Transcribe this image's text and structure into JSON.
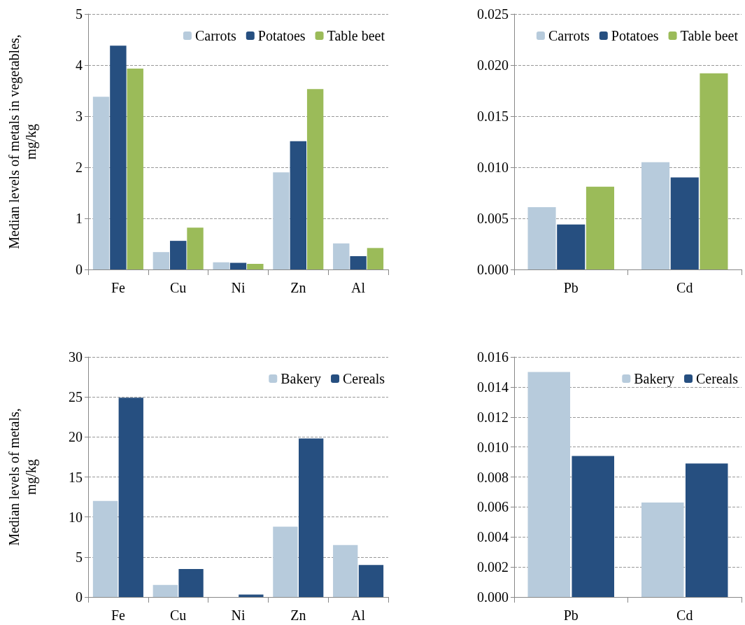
{
  "chart_data": [
    {
      "type": "bar",
      "ylabel": "Median levels of metals in vegetables,\nmg/kg",
      "categories": [
        "Fe",
        "Cu",
        "Ni",
        "Zn",
        "Al"
      ],
      "series": [
        {
          "name": "Carrots",
          "color": "#b7cbdc",
          "values": [
            3.38,
            0.34,
            0.14,
            1.9,
            0.51
          ]
        },
        {
          "name": "Potatoes",
          "color": "#264f80",
          "values": [
            4.38,
            0.56,
            0.13,
            2.51,
            0.26
          ]
        },
        {
          "name": "Table beet",
          "color": "#9bbb59",
          "values": [
            3.93,
            0.82,
            0.11,
            3.53,
            0.42
          ]
        }
      ],
      "ylim": [
        0,
        5
      ],
      "yticks": [
        0,
        1,
        2,
        3,
        4,
        5
      ],
      "grid": "y",
      "legend": "top right"
    },
    {
      "type": "bar",
      "categories": [
        "Pb",
        "Cd"
      ],
      "series": [
        {
          "name": "Carrots",
          "color": "#b7cbdc",
          "values": [
            0.0061,
            0.0105
          ]
        },
        {
          "name": "Potatoes",
          "color": "#264f80",
          "values": [
            0.0044,
            0.009
          ]
        },
        {
          "name": "Table beet",
          "color": "#9bbb59",
          "values": [
            0.0081,
            0.0192
          ]
        }
      ],
      "ylim": [
        0,
        0.025
      ],
      "yticks": [
        {
          "value": 0,
          "label": "0.000"
        },
        {
          "value": 0.005,
          "label": "0.005"
        },
        {
          "value": 0.01,
          "label": "0.010"
        },
        {
          "value": 0.015,
          "label": "0.015"
        },
        {
          "value": 0.02,
          "label": "0.020"
        },
        {
          "value": 0.025,
          "label": "0.025"
        }
      ],
      "grid": "y",
      "legend": "top right"
    },
    {
      "type": "bar",
      "ylabel": "Median levels of metals,\nmg/kg",
      "categories": [
        "Fe",
        "Cu",
        "Ni",
        "Zn",
        "Al"
      ],
      "series": [
        {
          "name": "Bakery",
          "color": "#b7cbdc",
          "values": [
            12,
            1.5,
            null,
            8.8,
            6.5
          ]
        },
        {
          "name": "Cereals",
          "color": "#264f80",
          "values": [
            24.9,
            3.5,
            0.3,
            19.8,
            4
          ]
        }
      ],
      "ylim": [
        0,
        30
      ],
      "yticks": [
        0,
        5,
        10,
        15,
        20,
        25,
        30
      ],
      "grid": "y",
      "legend": "top right"
    },
    {
      "type": "bar",
      "categories": [
        "Pb",
        "Cd"
      ],
      "series": [
        {
          "name": "Bakery",
          "color": "#b7cbdc",
          "values": [
            0.015,
            0.0063
          ]
        },
        {
          "name": "Cereals",
          "color": "#264f80",
          "values": [
            0.0094,
            0.0089
          ]
        }
      ],
      "ylim": [
        0,
        0.016
      ],
      "yticks": [
        {
          "value": 0,
          "label": "0.000"
        },
        {
          "value": 0.002,
          "label": "0.002"
        },
        {
          "value": 0.004,
          "label": "0.004"
        },
        {
          "value": 0.006,
          "label": "0.006"
        },
        {
          "value": 0.008,
          "label": "0.008"
        },
        {
          "value": 0.01,
          "label": "0.010"
        },
        {
          "value": 0.012,
          "label": "0.012"
        },
        {
          "value": 0.014,
          "label": "0.014"
        },
        {
          "value": 0.016,
          "label": "0.016"
        }
      ],
      "grid": "y",
      "legend": "top right"
    }
  ]
}
